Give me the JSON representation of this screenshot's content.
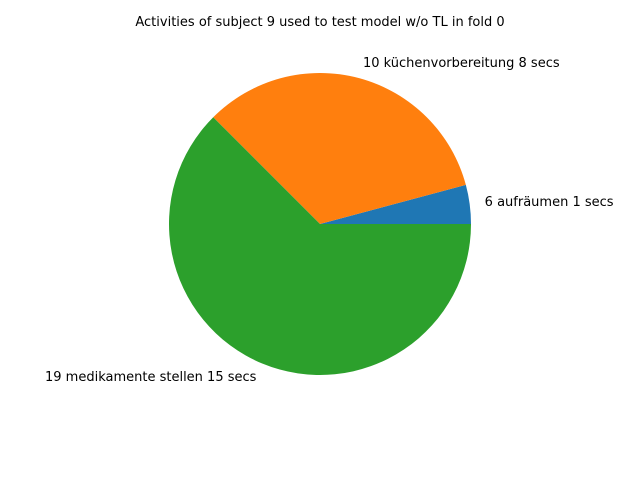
{
  "chart_data": {
    "type": "pie",
    "title": "Activities of subject 9 used to test model w/o TL in fold 0",
    "slices": [
      {
        "label": "6 aufräumen 1 secs",
        "value": 1,
        "color": "#1f77b4"
      },
      {
        "label": "10 küchenvorbereitung 8 secs",
        "value": 8,
        "color": "#ff7f0e"
      },
      {
        "label": "19 medikamente stellen 15 secs",
        "value": 15,
        "color": "#2ca02c"
      }
    ]
  }
}
